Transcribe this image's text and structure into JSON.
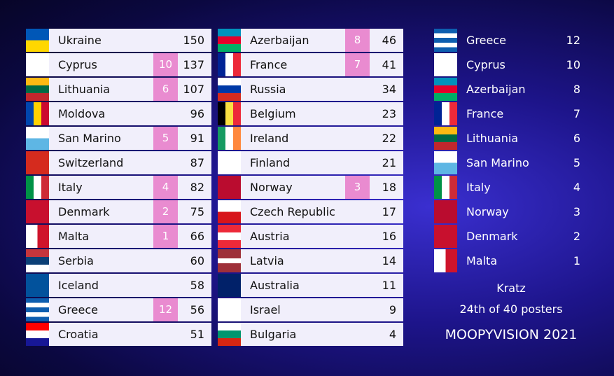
{
  "scoreboard": {
    "columns": [
      [
        {
          "country": "Ukraine",
          "total": 150,
          "flag": {
            "dir": "h",
            "stripes": [
              "#0057b7",
              "#ffd700"
            ]
          }
        },
        {
          "country": "Cyprus",
          "points": 10,
          "total": 137,
          "flag": {
            "dir": "h",
            "stripes": [
              "#ffffff"
            ]
          }
        },
        {
          "country": "Lithuania",
          "points": 6,
          "total": 107,
          "flag": {
            "dir": "h",
            "stripes": [
              "#fdb913",
              "#006a44",
              "#c1272d"
            ]
          }
        },
        {
          "country": "Moldova",
          "total": 96,
          "flag": {
            "dir": "v",
            "stripes": [
              "#0046ae",
              "#ffd200",
              "#cc092f"
            ]
          }
        },
        {
          "country": "San Marino",
          "points": 5,
          "total": 91,
          "flag": {
            "dir": "h",
            "stripes": [
              "#ffffff",
              "#5eb6e4"
            ]
          }
        },
        {
          "country": "Switzerland",
          "total": 87,
          "flag": {
            "dir": "h",
            "stripes": [
              "#d52b1e"
            ]
          }
        },
        {
          "country": "Italy",
          "points": 4,
          "total": 82,
          "flag": {
            "dir": "v",
            "stripes": [
              "#009246",
              "#ffffff",
              "#ce2b37"
            ]
          }
        },
        {
          "country": "Denmark",
          "points": 2,
          "total": 75,
          "flag": {
            "dir": "h",
            "stripes": [
              "#c8102e"
            ]
          }
        },
        {
          "country": "Malta",
          "points": 1,
          "total": 66,
          "flag": {
            "dir": "v",
            "stripes": [
              "#ffffff",
              "#cf142b"
            ]
          }
        },
        {
          "country": "Serbia",
          "total": 60,
          "flag": {
            "dir": "h",
            "stripes": [
              "#c6363c",
              "#0c4076",
              "#ffffff"
            ]
          }
        },
        {
          "country": "Iceland",
          "total": 58,
          "flag": {
            "dir": "h",
            "stripes": [
              "#02529c"
            ]
          }
        },
        {
          "country": "Greece",
          "points": 12,
          "total": 56,
          "flag": {
            "dir": "h",
            "stripes": [
              "#0d5eaf",
              "#ffffff",
              "#0d5eaf",
              "#ffffff",
              "#0d5eaf"
            ]
          }
        },
        {
          "country": "Croatia",
          "total": 51,
          "flag": {
            "dir": "h",
            "stripes": [
              "#ff0000",
              "#ffffff",
              "#171796"
            ]
          }
        }
      ],
      [
        {
          "country": "Azerbaijan",
          "points": 8,
          "total": 46,
          "flag": {
            "dir": "h",
            "stripes": [
              "#0092bc",
              "#e4002b",
              "#00af66"
            ]
          }
        },
        {
          "country": "France",
          "points": 7,
          "total": 41,
          "flag": {
            "dir": "v",
            "stripes": [
              "#002395",
              "#ffffff",
              "#ed2939"
            ]
          }
        },
        {
          "country": "Russia",
          "total": 34,
          "flag": {
            "dir": "h",
            "stripes": [
              "#ffffff",
              "#0039a6",
              "#d52b1e"
            ]
          }
        },
        {
          "country": "Belgium",
          "total": 23,
          "flag": {
            "dir": "v",
            "stripes": [
              "#000000",
              "#fae042",
              "#ed2939"
            ]
          }
        },
        {
          "country": "Ireland",
          "total": 22,
          "flag": {
            "dir": "v",
            "stripes": [
              "#169b62",
              "#ffffff",
              "#ff883e"
            ]
          }
        },
        {
          "country": "Finland",
          "total": 21,
          "flag": {
            "dir": "h",
            "stripes": [
              "#ffffff"
            ]
          }
        },
        {
          "country": "Norway",
          "points": 3,
          "total": 18,
          "flag": {
            "dir": "h",
            "stripes": [
              "#ba0c2f"
            ]
          }
        },
        {
          "country": "Czech Republic",
          "total": 17,
          "flag": {
            "dir": "h",
            "stripes": [
              "#ffffff",
              "#d7141a"
            ]
          }
        },
        {
          "country": "Austria",
          "total": 16,
          "flag": {
            "dir": "h",
            "stripes": [
              "#ed2939",
              "#ffffff",
              "#ed2939"
            ]
          }
        },
        {
          "country": "Latvia",
          "total": 14,
          "flag": {
            "dir": "h",
            "stripes": [
              "#9e3039",
              "#9e3039",
              "#ffffff",
              "#9e3039",
              "#9e3039"
            ]
          }
        },
        {
          "country": "Australia",
          "total": 11,
          "flag": {
            "dir": "h",
            "stripes": [
              "#012169"
            ]
          }
        },
        {
          "country": "Israel",
          "total": 9,
          "flag": {
            "dir": "h",
            "stripes": [
              "#ffffff"
            ]
          }
        },
        {
          "country": "Bulgaria",
          "total": 4,
          "flag": {
            "dir": "h",
            "stripes": [
              "#ffffff",
              "#00966e",
              "#d62612"
            ]
          }
        }
      ]
    ],
    "votes": [
      {
        "country": "Greece",
        "points": 12,
        "flag": {
          "dir": "h",
          "stripes": [
            "#0d5eaf",
            "#ffffff",
            "#0d5eaf",
            "#ffffff",
            "#0d5eaf"
          ]
        }
      },
      {
        "country": "Cyprus",
        "points": 10,
        "flag": {
          "dir": "h",
          "stripes": [
            "#ffffff"
          ]
        }
      },
      {
        "country": "Azerbaijan",
        "points": 8,
        "flag": {
          "dir": "h",
          "stripes": [
            "#0092bc",
            "#e4002b",
            "#00af66"
          ]
        }
      },
      {
        "country": "France",
        "points": 7,
        "flag": {
          "dir": "v",
          "stripes": [
            "#002395",
            "#ffffff",
            "#ed2939"
          ]
        }
      },
      {
        "country": "Lithuania",
        "points": 6,
        "flag": {
          "dir": "h",
          "stripes": [
            "#fdb913",
            "#006a44",
            "#c1272d"
          ]
        }
      },
      {
        "country": "San Marino",
        "points": 5,
        "flag": {
          "dir": "h",
          "stripes": [
            "#ffffff",
            "#5eb6e4"
          ]
        }
      },
      {
        "country": "Italy",
        "points": 4,
        "flag": {
          "dir": "v",
          "stripes": [
            "#009246",
            "#ffffff",
            "#ce2b37"
          ]
        }
      },
      {
        "country": "Norway",
        "points": 3,
        "flag": {
          "dir": "h",
          "stripes": [
            "#ba0c2f"
          ]
        }
      },
      {
        "country": "Denmark",
        "points": 2,
        "flag": {
          "dir": "h",
          "stripes": [
            "#c8102e"
          ]
        }
      },
      {
        "country": "Malta",
        "points": 1,
        "flag": {
          "dir": "v",
          "stripes": [
            "#ffffff",
            "#cf142b"
          ]
        }
      }
    ],
    "voter": "Kratz",
    "rank": "24th of 40 posters",
    "event": "MOOPYVISION 2021"
  }
}
